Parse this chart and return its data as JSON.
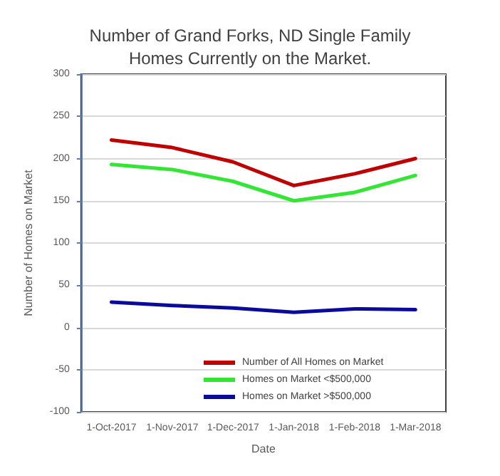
{
  "chart_data": {
    "type": "line",
    "title": "Number of Grand Forks, ND Single Family\nHomes Currently on the Market.",
    "xlabel": "Date",
    "ylabel": "Number of Homes on Market",
    "categories": [
      "1-Oct-2017",
      "1-Nov-2017",
      "1-Dec-2017",
      "1-Jan-2018",
      "1-Feb-2018",
      "1-Mar-2018"
    ],
    "series": [
      {
        "name": "Number of All Homes on Market",
        "color": "#c00000",
        "values": [
          222,
          213,
          196,
          168,
          182,
          200
        ]
      },
      {
        "name": "Homes on Market <$500,000",
        "color": "#33e633",
        "values": [
          193,
          187,
          173,
          150,
          160,
          180
        ]
      },
      {
        "name": "Homes on Market >$500,000",
        "color": "#0a0a9c",
        "values": [
          30,
          26,
          23,
          18,
          22,
          21
        ]
      }
    ],
    "ylim": [
      -100,
      300
    ],
    "yticks": [
      -100,
      -50,
      0,
      50,
      100,
      150,
      200,
      250,
      300
    ],
    "grid": "y",
    "legend": "bottom",
    "marker": "none",
    "line_style": "solid"
  }
}
